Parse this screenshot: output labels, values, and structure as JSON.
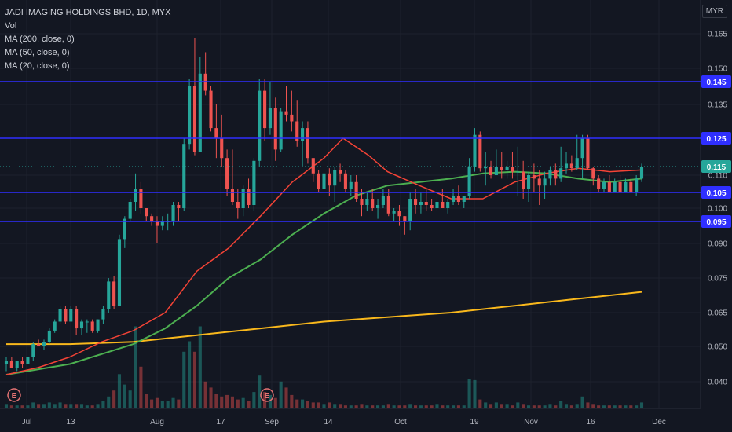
{
  "legend": {
    "title": "JADI IMAGING HOLDINGS BHD, 1D, MYX",
    "vol": "Vol",
    "ma200": "MA (200, close, 0)",
    "ma50": "MA (50, close, 0)",
    "ma20": "MA (20, close, 0)"
  },
  "currency": "MYR",
  "colors": {
    "background": "#131722",
    "up": "#26a69a",
    "down": "#ef5350",
    "ma20": "#f44336",
    "ma50": "#4caf50",
    "ma200": "#f9b81c",
    "hline": "#2f2fff",
    "earnings": "#e57373"
  },
  "chart_data": {
    "type": "candlestick",
    "y_ticks": [
      "0.165",
      "0.150",
      "0.135",
      "0.125",
      "0.110",
      "0.100",
      "0.090",
      "0.075",
      "0.065",
      "0.050",
      "0.040"
    ],
    "x_ticks": [
      "Jul",
      "13",
      "Aug",
      "17",
      "Sep",
      "14",
      "Oct",
      "19",
      "Nov",
      "16",
      "Dec"
    ],
    "horizontal_lines": [
      "0.145",
      "0.125",
      "0.105",
      "0.095"
    ],
    "current_price": "0.115",
    "earnings_markers": [
      "E",
      "E"
    ],
    "candles": [
      [
        0.045,
        0.047,
        0.043,
        0.046,
        3
      ],
      [
        0.046,
        0.047,
        0.044,
        0.044,
        2
      ],
      [
        0.044,
        0.046,
        0.043,
        0.046,
        2
      ],
      [
        0.046,
        0.047,
        0.044,
        0.045,
        2
      ],
      [
        0.045,
        0.047,
        0.045,
        0.047,
        2
      ],
      [
        0.047,
        0.052,
        0.046,
        0.051,
        4
      ],
      [
        0.051,
        0.053,
        0.05,
        0.05,
        3
      ],
      [
        0.05,
        0.053,
        0.049,
        0.052,
        3
      ],
      [
        0.052,
        0.058,
        0.051,
        0.057,
        4
      ],
      [
        0.057,
        0.062,
        0.056,
        0.061,
        3
      ],
      [
        0.061,
        0.067,
        0.06,
        0.066,
        4
      ],
      [
        0.066,
        0.067,
        0.06,
        0.061,
        3
      ],
      [
        0.061,
        0.067,
        0.061,
        0.066,
        3
      ],
      [
        0.066,
        0.067,
        0.055,
        0.058,
        3
      ],
      [
        0.058,
        0.062,
        0.055,
        0.061,
        3
      ],
      [
        0.061,
        0.062,
        0.056,
        0.061,
        2
      ],
      [
        0.061,
        0.062,
        0.056,
        0.057,
        2
      ],
      [
        0.057,
        0.062,
        0.056,
        0.062,
        3
      ],
      [
        0.062,
        0.067,
        0.06,
        0.066,
        5
      ],
      [
        0.066,
        0.075,
        0.065,
        0.074,
        8
      ],
      [
        0.074,
        0.076,
        0.066,
        0.067,
        12
      ],
      [
        0.067,
        0.092,
        0.067,
        0.091,
        23
      ],
      [
        0.091,
        0.097,
        0.088,
        0.096,
        16
      ],
      [
        0.096,
        0.103,
        0.095,
        0.102,
        12
      ],
      [
        0.102,
        0.111,
        0.099,
        0.106,
        55
      ],
      [
        0.106,
        0.108,
        0.098,
        0.1,
        28
      ],
      [
        0.1,
        0.1,
        0.095,
        0.097,
        10
      ],
      [
        0.097,
        0.098,
        0.094,
        0.095,
        6
      ],
      [
        0.095,
        0.097,
        0.09,
        0.094,
        7
      ],
      [
        0.094,
        0.097,
        0.093,
        0.095,
        5
      ],
      [
        0.095,
        0.098,
        0.093,
        0.095,
        5
      ],
      [
        0.095,
        0.102,
        0.094,
        0.101,
        7
      ],
      [
        0.101,
        0.102,
        0.095,
        0.1,
        6
      ],
      [
        0.1,
        0.125,
        0.099,
        0.123,
        38
      ],
      [
        0.123,
        0.146,
        0.121,
        0.143,
        45
      ],
      [
        0.143,
        0.163,
        0.119,
        0.12,
        38
      ],
      [
        0.12,
        0.155,
        0.12,
        0.148,
        55
      ],
      [
        0.148,
        0.157,
        0.139,
        0.141,
        18
      ],
      [
        0.141,
        0.143,
        0.127,
        0.128,
        14
      ],
      [
        0.128,
        0.135,
        0.118,
        0.125,
        10
      ],
      [
        0.125,
        0.132,
        0.115,
        0.118,
        8
      ],
      [
        0.118,
        0.121,
        0.104,
        0.106,
        9
      ],
      [
        0.106,
        0.121,
        0.101,
        0.102,
        8
      ],
      [
        0.102,
        0.106,
        0.096,
        0.1,
        6
      ],
      [
        0.1,
        0.107,
        0.097,
        0.106,
        7
      ],
      [
        0.106,
        0.109,
        0.1,
        0.101,
        5
      ],
      [
        0.101,
        0.118,
        0.099,
        0.117,
        11
      ],
      [
        0.117,
        0.146,
        0.115,
        0.141,
        22
      ],
      [
        0.141,
        0.146,
        0.124,
        0.128,
        11
      ],
      [
        0.128,
        0.145,
        0.126,
        0.134,
        9
      ],
      [
        0.134,
        0.138,
        0.117,
        0.121,
        7
      ],
      [
        0.121,
        0.134,
        0.12,
        0.133,
        18
      ],
      [
        0.133,
        0.143,
        0.13,
        0.132,
        14
      ],
      [
        0.132,
        0.141,
        0.127,
        0.13,
        9
      ],
      [
        0.13,
        0.137,
        0.122,
        0.124,
        6
      ],
      [
        0.124,
        0.13,
        0.115,
        0.128,
        6
      ],
      [
        0.128,
        0.13,
        0.116,
        0.118,
        5
      ],
      [
        0.118,
        0.118,
        0.108,
        0.111,
        4
      ],
      [
        0.111,
        0.113,
        0.105,
        0.106,
        4
      ],
      [
        0.106,
        0.113,
        0.103,
        0.111,
        3
      ],
      [
        0.111,
        0.114,
        0.104,
        0.107,
        4
      ],
      [
        0.107,
        0.115,
        0.102,
        0.113,
        3
      ],
      [
        0.113,
        0.116,
        0.108,
        0.111,
        3
      ],
      [
        0.111,
        0.113,
        0.105,
        0.106,
        2
      ],
      [
        0.106,
        0.11,
        0.104,
        0.108,
        2
      ],
      [
        0.108,
        0.11,
        0.102,
        0.103,
        2
      ],
      [
        0.103,
        0.106,
        0.097,
        0.101,
        3
      ],
      [
        0.101,
        0.105,
        0.099,
        0.103,
        2
      ],
      [
        0.103,
        0.106,
        0.099,
        0.1,
        2
      ],
      [
        0.1,
        0.103,
        0.096,
        0.101,
        2
      ],
      [
        0.101,
        0.106,
        0.1,
        0.104,
        2
      ],
      [
        0.104,
        0.106,
        0.097,
        0.098,
        3
      ],
      [
        0.098,
        0.1,
        0.095,
        0.099,
        2
      ],
      [
        0.099,
        0.101,
        0.094,
        0.097,
        2
      ],
      [
        0.097,
        0.097,
        0.092,
        0.095,
        2
      ],
      [
        0.095,
        0.105,
        0.093,
        0.103,
        3
      ],
      [
        0.103,
        0.106,
        0.098,
        0.101,
        2
      ],
      [
        0.101,
        0.105,
        0.098,
        0.102,
        2
      ],
      [
        0.102,
        0.106,
        0.099,
        0.101,
        2
      ],
      [
        0.101,
        0.103,
        0.099,
        0.1,
        2
      ],
      [
        0.1,
        0.106,
        0.099,
        0.102,
        3
      ],
      [
        0.102,
        0.106,
        0.1,
        0.1,
        2
      ],
      [
        0.1,
        0.103,
        0.098,
        0.102,
        2
      ],
      [
        0.102,
        0.106,
        0.101,
        0.104,
        2
      ],
      [
        0.104,
        0.107,
        0.101,
        0.102,
        2
      ],
      [
        0.102,
        0.104,
        0.1,
        0.104,
        2
      ],
      [
        0.104,
        0.118,
        0.103,
        0.115,
        20
      ],
      [
        0.115,
        0.128,
        0.112,
        0.126,
        19
      ],
      [
        0.126,
        0.127,
        0.112,
        0.114,
        6
      ],
      [
        0.114,
        0.12,
        0.107,
        0.115,
        4
      ],
      [
        0.115,
        0.117,
        0.109,
        0.11,
        3
      ],
      [
        0.11,
        0.121,
        0.11,
        0.115,
        4
      ],
      [
        0.115,
        0.12,
        0.109,
        0.113,
        3
      ],
      [
        0.113,
        0.117,
        0.109,
        0.115,
        3
      ],
      [
        0.115,
        0.12,
        0.109,
        0.112,
        2
      ],
      [
        0.112,
        0.122,
        0.104,
        0.112,
        4
      ],
      [
        0.112,
        0.117,
        0.103,
        0.106,
        3
      ],
      [
        0.106,
        0.112,
        0.102,
        0.11,
        2
      ],
      [
        0.11,
        0.116,
        0.105,
        0.109,
        2
      ],
      [
        0.109,
        0.113,
        0.101,
        0.107,
        2
      ],
      [
        0.107,
        0.112,
        0.103,
        0.109,
        2
      ],
      [
        0.109,
        0.115,
        0.107,
        0.113,
        3
      ],
      [
        0.113,
        0.116,
        0.107,
        0.109,
        2
      ],
      [
        0.109,
        0.122,
        0.108,
        0.114,
        5
      ],
      [
        0.114,
        0.12,
        0.111,
        0.116,
        3
      ],
      [
        0.116,
        0.119,
        0.112,
        0.114,
        2
      ],
      [
        0.114,
        0.126,
        0.113,
        0.118,
        3
      ],
      [
        0.118,
        0.126,
        0.109,
        0.125,
        8
      ],
      [
        0.125,
        0.126,
        0.113,
        0.114,
        4
      ],
      [
        0.114,
        0.115,
        0.107,
        0.109,
        3
      ],
      [
        0.109,
        0.11,
        0.105,
        0.106,
        2
      ],
      [
        0.106,
        0.109,
        0.105,
        0.108,
        2
      ],
      [
        0.108,
        0.11,
        0.105,
        0.105,
        2
      ],
      [
        0.105,
        0.109,
        0.105,
        0.108,
        2
      ],
      [
        0.108,
        0.11,
        0.105,
        0.105,
        2
      ],
      [
        0.105,
        0.109,
        0.105,
        0.108,
        2
      ],
      [
        0.108,
        0.109,
        0.105,
        0.105,
        2
      ],
      [
        0.105,
        0.11,
        0.104,
        0.109,
        2
      ],
      [
        0.109,
        0.116,
        0.108,
        0.115,
        4
      ]
    ],
    "ma20": [
      [
        0,
        0.042
      ],
      [
        0.05,
        0.044
      ],
      [
        0.1,
        0.047
      ],
      [
        0.15,
        0.052
      ],
      [
        0.2,
        0.057
      ],
      [
        0.25,
        0.065
      ],
      [
        0.3,
        0.078
      ],
      [
        0.35,
        0.088
      ],
      [
        0.4,
        0.097
      ],
      [
        0.45,
        0.108
      ],
      [
        0.5,
        0.118
      ],
      [
        0.53,
        0.125
      ],
      [
        0.57,
        0.119
      ],
      [
        0.6,
        0.112
      ],
      [
        0.65,
        0.107
      ],
      [
        0.7,
        0.103
      ],
      [
        0.75,
        0.103
      ],
      [
        0.8,
        0.108
      ],
      [
        0.85,
        0.111
      ],
      [
        0.9,
        0.114
      ],
      [
        0.95,
        0.112
      ],
      [
        1,
        0.113
      ]
    ],
    "ma50": [
      [
        0,
        0.042
      ],
      [
        0.1,
        0.045
      ],
      [
        0.2,
        0.051
      ],
      [
        0.25,
        0.058
      ],
      [
        0.3,
        0.067
      ],
      [
        0.35,
        0.075
      ],
      [
        0.4,
        0.083
      ],
      [
        0.45,
        0.092
      ],
      [
        0.5,
        0.098
      ],
      [
        0.55,
        0.104
      ],
      [
        0.6,
        0.107
      ],
      [
        0.7,
        0.109
      ],
      [
        0.75,
        0.111
      ],
      [
        0.8,
        0.112
      ],
      [
        0.85,
        0.111
      ],
      [
        0.9,
        0.109
      ],
      [
        0.95,
        0.108
      ],
      [
        1,
        0.109
      ]
    ],
    "ma200": [
      [
        0,
        0.051
      ],
      [
        0.1,
        0.051
      ],
      [
        0.2,
        0.052
      ],
      [
        0.3,
        0.055
      ],
      [
        0.4,
        0.058
      ],
      [
        0.5,
        0.061
      ],
      [
        0.6,
        0.063
      ],
      [
        0.7,
        0.065
      ],
      [
        0.8,
        0.067
      ],
      [
        0.9,
        0.069
      ],
      [
        1,
        0.071
      ]
    ]
  }
}
